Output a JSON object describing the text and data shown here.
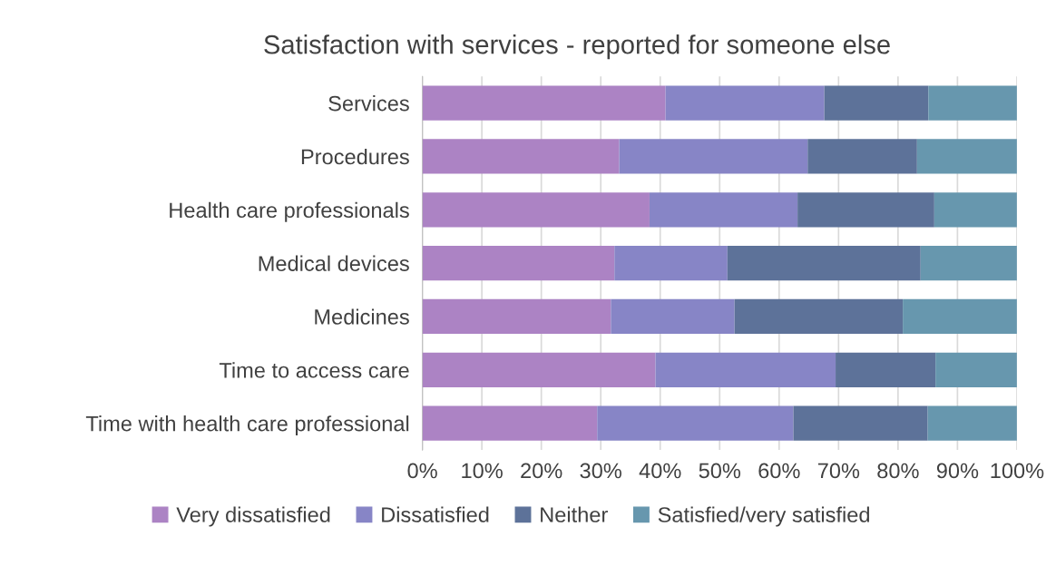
{
  "chart_data": {
    "type": "bar",
    "orientation": "horizontal",
    "stacked": true,
    "title": "Satisfaction with services - reported for someone else",
    "categories": [
      "Services",
      "Procedures",
      "Health care professionals",
      "Medical devices",
      "Medicines",
      "Time to access care",
      "Time with health care professional"
    ],
    "series": [
      {
        "name": "Very dissatisfied",
        "color": "#ac83c4",
        "values": [
          40.9,
          33.1,
          38.2,
          32.3,
          31.7,
          39.2,
          29.4
        ]
      },
      {
        "name": "Dissatisfied",
        "color": "#8785c6",
        "values": [
          26.7,
          31.7,
          24.9,
          19.0,
          20.8,
          30.3,
          33.0
        ]
      },
      {
        "name": "Neither",
        "color": "#5d7299",
        "values": [
          17.5,
          18.4,
          23.0,
          32.5,
          28.3,
          16.8,
          22.6
        ]
      },
      {
        "name": "Satisfied/very satisfied",
        "color": "#6797ae",
        "values": [
          14.9,
          16.8,
          13.9,
          16.2,
          19.2,
          13.7,
          15.0
        ]
      }
    ],
    "xlim": [
      0,
      100
    ],
    "xticks": [
      {
        "value": 0,
        "label": "0%"
      },
      {
        "value": 10,
        "label": "10%"
      },
      {
        "value": 20,
        "label": "20%"
      },
      {
        "value": 30,
        "label": "30%"
      },
      {
        "value": 40,
        "label": "40%"
      },
      {
        "value": 50,
        "label": "50%"
      },
      {
        "value": 60,
        "label": "60%"
      },
      {
        "value": 70,
        "label": "70%"
      },
      {
        "value": 80,
        "label": "80%"
      },
      {
        "value": 90,
        "label": "90%"
      },
      {
        "value": 100,
        "label": "100%"
      }
    ],
    "grid": "x",
    "legend": "bottom"
  }
}
